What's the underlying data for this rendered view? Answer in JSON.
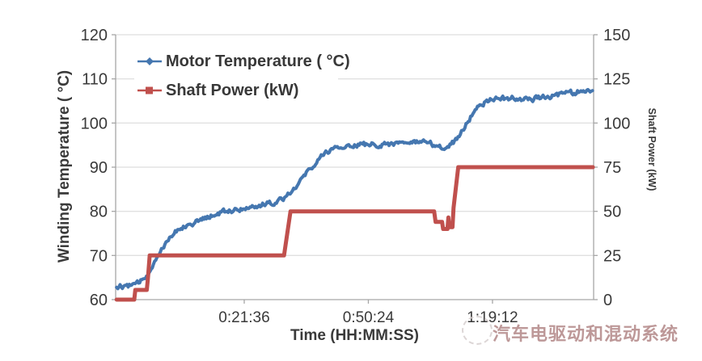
{
  "figure": {
    "background": "#ffffff",
    "watermark": {
      "logo": "sketch-circle-logo",
      "text": "汽车电驱动和混动系统",
      "color": "#a47070"
    }
  },
  "chart_data": {
    "type": "line",
    "title": "",
    "xlabel": "Time (HH:MM:SS)",
    "ylabel_left": "Winding Temperature ( °C)",
    "ylabel_right": "Shaft Power (kW)",
    "grid": "horizontal",
    "legend_position": "top-left-inside",
    "axis_color": "#a6a6a6",
    "gridline_color": "#d6d6d6",
    "tick_text_color": "#3a3a3a",
    "x_range_seconds": [
      -494,
      6160
    ],
    "x_ticks": [
      {
        "seconds": 1296,
        "label": "0:21:36"
      },
      {
        "seconds": 3024,
        "label": "0:50:24"
      },
      {
        "seconds": 4752,
        "label": "1:19:12"
      }
    ],
    "y_left": {
      "range": [
        60,
        120
      ],
      "ticks": [
        120,
        110,
        100,
        90,
        80,
        70,
        60
      ],
      "tick_labels": [
        "120",
        "110",
        "100",
        "90",
        "80",
        "70",
        "60"
      ]
    },
    "y_right": {
      "range": [
        0,
        150
      ],
      "ticks": [
        150,
        125,
        100,
        75,
        50,
        25,
        0
      ],
      "tick_labels": [
        "150",
        "125",
        "100",
        "75",
        "50",
        "25",
        "0"
      ]
    },
    "series": [
      {
        "name": "Motor Temperature ( °C)",
        "axis": "left",
        "color": "#4577b0",
        "marker": "diamond",
        "stroke_width": 4,
        "noise_amplitude": 1.0,
        "noise_seed": 12,
        "points": [
          [
            -480,
            63.0
          ],
          [
            -300,
            63.2
          ],
          [
            -180,
            63.6
          ],
          [
            -80,
            65.3
          ],
          [
            20,
            67.8
          ],
          [
            120,
            70.8
          ],
          [
            230,
            73.8
          ],
          [
            350,
            75.6
          ],
          [
            480,
            77.0
          ],
          [
            620,
            77.5
          ],
          [
            800,
            78.7
          ],
          [
            1000,
            79.8
          ],
          [
            1200,
            80.5
          ],
          [
            1450,
            81.2
          ],
          [
            1700,
            82.0
          ],
          [
            1850,
            83.2
          ],
          [
            1945,
            84.6
          ],
          [
            2060,
            86.6
          ],
          [
            2180,
            89.0
          ],
          [
            2300,
            91.2
          ],
          [
            2430,
            93.2
          ],
          [
            2550,
            94.8
          ],
          [
            2640,
            93.9
          ],
          [
            2760,
            94.9
          ],
          [
            3000,
            95.1
          ],
          [
            3300,
            95.3
          ],
          [
            3600,
            95.6
          ],
          [
            3850,
            95.4
          ],
          [
            4020,
            94.6
          ],
          [
            4150,
            94.9
          ],
          [
            4250,
            96.2
          ],
          [
            4350,
            98.8
          ],
          [
            4460,
            101.8
          ],
          [
            4580,
            104.2
          ],
          [
            4700,
            105.2
          ],
          [
            4850,
            105.5
          ],
          [
            5050,
            105.6
          ],
          [
            5250,
            105.3
          ],
          [
            5450,
            105.9
          ],
          [
            5650,
            106.4
          ],
          [
            5850,
            106.8
          ],
          [
            6000,
            107.2
          ],
          [
            6150,
            107.0
          ]
        ]
      },
      {
        "name": "Shaft Power (kW)",
        "axis": "right",
        "color": "#c0504d",
        "marker": "square",
        "stroke_width": 5,
        "noise_amplitude": 0,
        "noise_seed": 1,
        "points": [
          [
            -480,
            0
          ],
          [
            -235,
            0
          ],
          [
            -220,
            5.5
          ],
          [
            -60,
            5.5
          ],
          [
            -45,
            12
          ],
          [
            -20,
            25
          ],
          [
            1850,
            25
          ],
          [
            1940,
            50
          ],
          [
            3940,
            50
          ],
          [
            3960,
            44
          ],
          [
            4050,
            44
          ],
          [
            4065,
            40
          ],
          [
            4125,
            40
          ],
          [
            4138,
            46.5
          ],
          [
            4150,
            41
          ],
          [
            4195,
            41
          ],
          [
            4210,
            52
          ],
          [
            4275,
            75
          ],
          [
            6150,
            75
          ]
        ]
      }
    ]
  }
}
